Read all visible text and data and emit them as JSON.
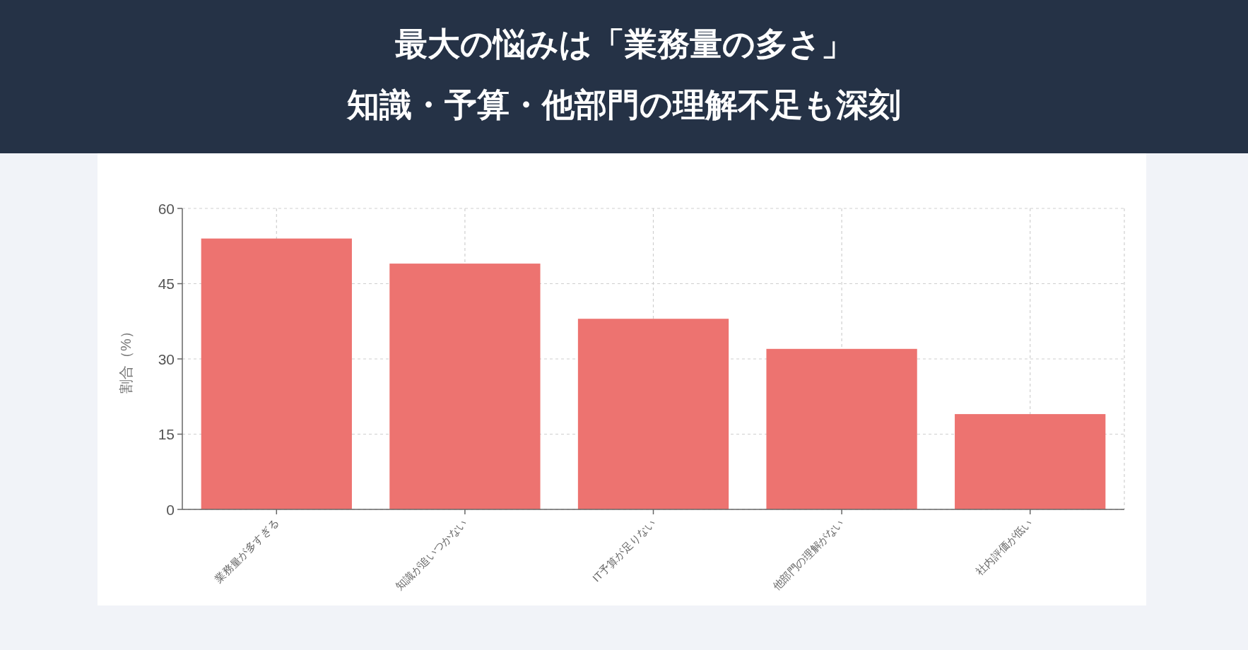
{
  "chart_data": {
    "type": "bar",
    "title": "最大の悩みは「業務量の多さ」",
    "subtitle": "知識・予算・他部門の理解不足も深刻",
    "ylabel": "割合（%）",
    "categories": [
      "業務量が多すぎる",
      "知識が追いつかない",
      "IT予算が足りない",
      "他部門の理解がない",
      "社内評価が低い"
    ],
    "values": [
      54,
      49,
      38,
      32,
      19
    ],
    "color": "#ed7370",
    "ylim": [
      0,
      60
    ],
    "yticks": [
      0,
      15,
      30,
      45,
      60
    ],
    "grid": true
  }
}
